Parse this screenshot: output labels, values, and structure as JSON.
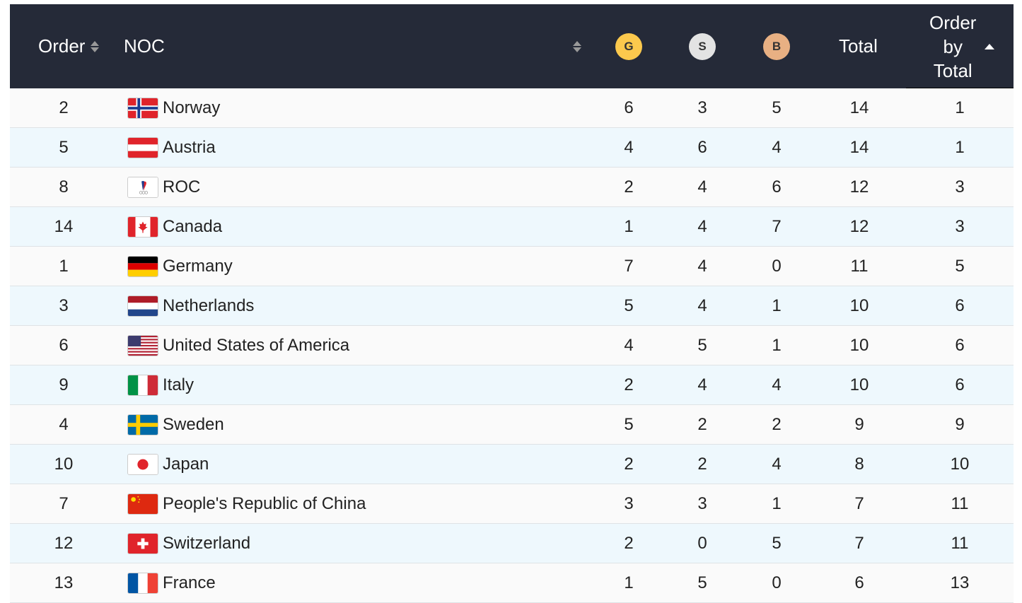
{
  "header": {
    "order": "Order",
    "noc": "NOC",
    "gold": "G",
    "silver": "S",
    "bronze": "B",
    "total": "Total",
    "order_by_total": [
      "Order",
      "by",
      "Total"
    ]
  },
  "colors": {
    "header_bg": "#252a38",
    "gold": "#fcc94d",
    "silver": "#e3e3e3",
    "bronze": "#e8b083",
    "row_alt": "#eef8fd"
  },
  "rows": [
    {
      "order": "2",
      "noc": "Norway",
      "flag": "norway-flag-icon",
      "g": "6",
      "s": "3",
      "b": "5",
      "total": "14",
      "obt": "1"
    },
    {
      "order": "5",
      "noc": "Austria",
      "flag": "austria-flag-icon",
      "g": "4",
      "s": "6",
      "b": "4",
      "total": "14",
      "obt": "1"
    },
    {
      "order": "8",
      "noc": "ROC",
      "flag": "roc-flag-icon",
      "g": "2",
      "s": "4",
      "b": "6",
      "total": "12",
      "obt": "3"
    },
    {
      "order": "14",
      "noc": "Canada",
      "flag": "canada-flag-icon",
      "g": "1",
      "s": "4",
      "b": "7",
      "total": "12",
      "obt": "3"
    },
    {
      "order": "1",
      "noc": "Germany",
      "flag": "germany-flag-icon",
      "g": "7",
      "s": "4",
      "b": "0",
      "total": "11",
      "obt": "5"
    },
    {
      "order": "3",
      "noc": "Netherlands",
      "flag": "netherlands-flag-icon",
      "g": "5",
      "s": "4",
      "b": "1",
      "total": "10",
      "obt": "6"
    },
    {
      "order": "6",
      "noc": "United States of America",
      "flag": "usa-flag-icon",
      "g": "4",
      "s": "5",
      "b": "1",
      "total": "10",
      "obt": "6"
    },
    {
      "order": "9",
      "noc": "Italy",
      "flag": "italy-flag-icon",
      "g": "2",
      "s": "4",
      "b": "4",
      "total": "10",
      "obt": "6"
    },
    {
      "order": "4",
      "noc": "Sweden",
      "flag": "sweden-flag-icon",
      "g": "5",
      "s": "2",
      "b": "2",
      "total": "9",
      "obt": "9"
    },
    {
      "order": "10",
      "noc": "Japan",
      "flag": "japan-flag-icon",
      "g": "2",
      "s": "2",
      "b": "4",
      "total": "8",
      "obt": "10"
    },
    {
      "order": "7",
      "noc": "People's Republic of China",
      "flag": "china-flag-icon",
      "g": "3",
      "s": "3",
      "b": "1",
      "total": "7",
      "obt": "11"
    },
    {
      "order": "12",
      "noc": "Switzerland",
      "flag": "switzerland-flag-icon",
      "g": "2",
      "s": "0",
      "b": "5",
      "total": "7",
      "obt": "11"
    },
    {
      "order": "13",
      "noc": "France",
      "flag": "france-flag-icon",
      "g": "1",
      "s": "5",
      "b": "0",
      "total": "6",
      "obt": "13"
    }
  ]
}
